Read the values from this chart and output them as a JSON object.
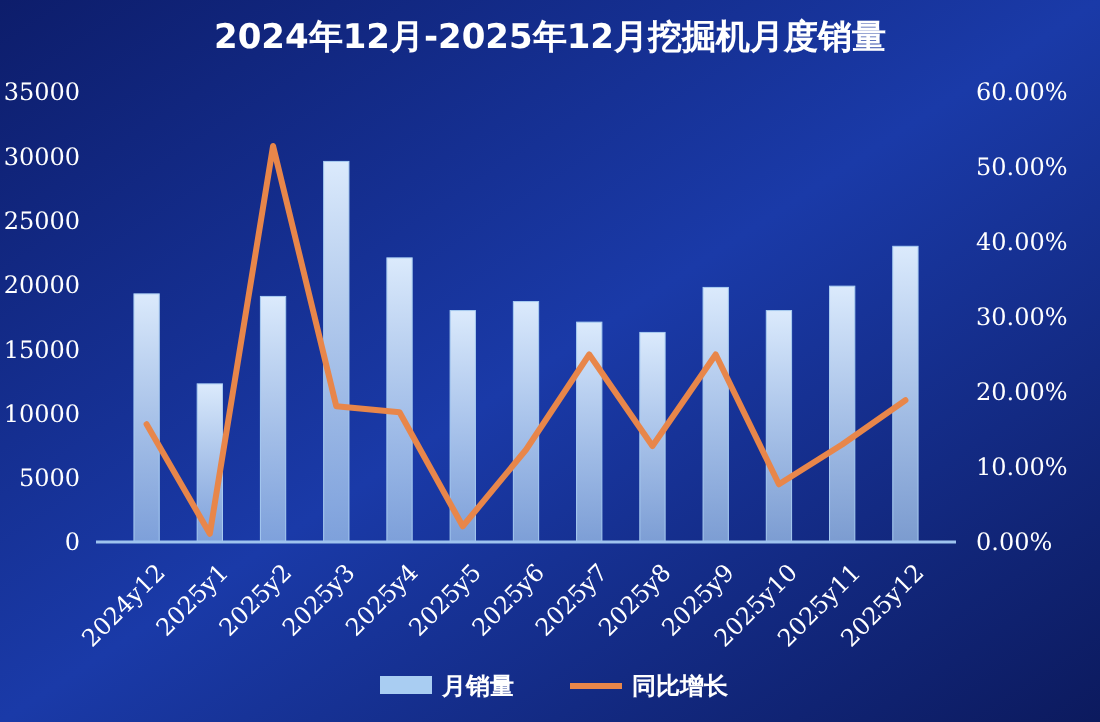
{
  "chart_data": {
    "type": "bar",
    "title": "2024年12月-2025年12月挖掘机月度销量",
    "categories": [
      "2024y12",
      "2025y1",
      "2025y2",
      "2025y3",
      "2025y4",
      "2025y5",
      "2025y6",
      "2025y7",
      "2025y8",
      "2025y9",
      "2025y10",
      "2025y11",
      "2025y12"
    ],
    "series": [
      {
        "name": "月销量",
        "color": "#a9cdf2",
        "values": [
          19300,
          12300,
          19100,
          29600,
          22100,
          18000,
          18700,
          17100,
          16300,
          19800,
          18000,
          19900,
          23000
        ]
      },
      {
        "name": "同比增长",
        "type": "line",
        "axis": "y2",
        "color": "#e8864a",
        "values": [
          15.7,
          1.1,
          52.8,
          18.1,
          17.3,
          2.1,
          12.3,
          25,
          12.8,
          25,
          7.7,
          13,
          18.9
        ]
      }
    ],
    "ylim": [
      0,
      35000
    ],
    "yticks": [
      0,
      5000,
      10000,
      15000,
      20000,
      25000,
      30000,
      35000
    ],
    "y2lim": [
      0,
      60
    ],
    "y2ticks": [
      {
        "value": 0,
        "label": "0.00%"
      },
      {
        "value": 10,
        "label": "10.00%"
      },
      {
        "value": 20,
        "label": "20.00%"
      },
      {
        "value": 30,
        "label": "30.00%"
      },
      {
        "value": 40,
        "label": "40.00%"
      },
      {
        "value": 50,
        "label": "50.00%"
      },
      {
        "value": 60,
        "label": "60.00%"
      }
    ],
    "legend": "bottom",
    "grid": false,
    "marker": "none",
    "line_style": "solid"
  }
}
